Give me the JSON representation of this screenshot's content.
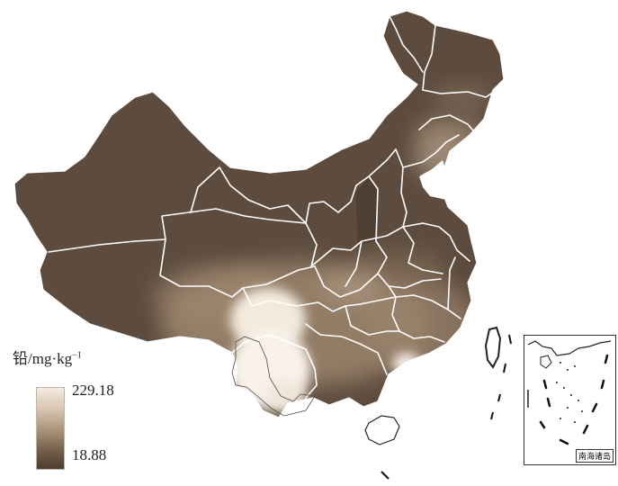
{
  "map": {
    "legend": {
      "title_main": "铅/mg·kg",
      "title_exp": "−1",
      "max_label": "229.18",
      "min_label": "18.88",
      "max_value": 229.18,
      "min_value": 18.88,
      "colors": {
        "low": "#4c3d30",
        "mid": "#a48d73",
        "high": "#f3e9dd"
      }
    },
    "inset": {
      "label": "南海诸岛"
    },
    "colors": {
      "land_dark": "#5d4c3e",
      "boundary": "#ffffff",
      "outline": "#333333"
    }
  }
}
